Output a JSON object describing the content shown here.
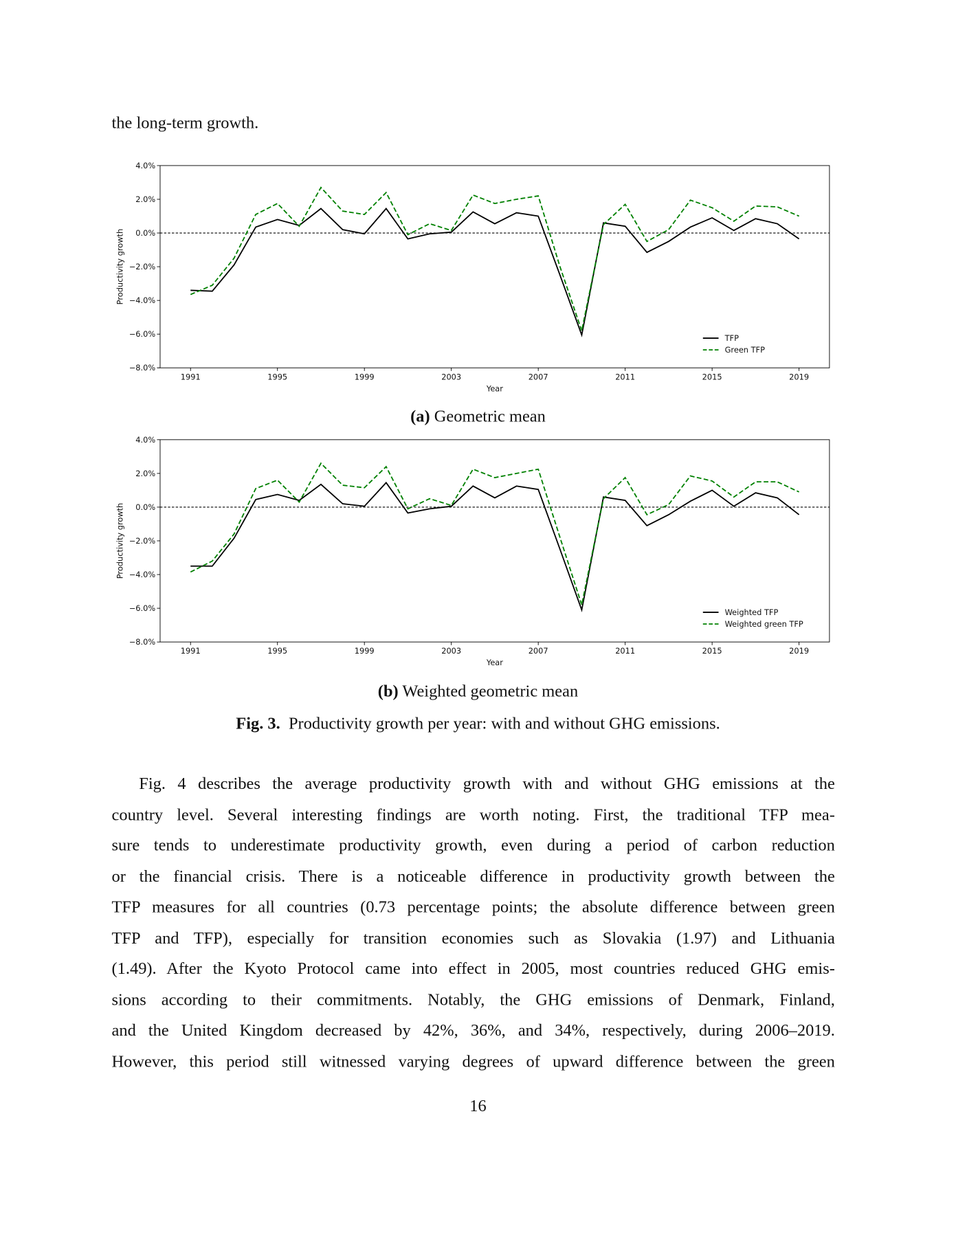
{
  "intro_text": "the long-term growth.",
  "chart_data": [
    {
      "type": "line",
      "y_label": "Productivity growth",
      "x_label": "Year",
      "x": [
        1991,
        1992,
        1993,
        1994,
        1995,
        1996,
        1997,
        1998,
        1999,
        2000,
        2001,
        2002,
        2003,
        2004,
        2005,
        2006,
        2007,
        2008,
        2009,
        2010,
        2011,
        2012,
        2013,
        2014,
        2015,
        2016,
        2017,
        2018,
        2019
      ],
      "series": [
        {
          "name": "TFP",
          "color": "#000000",
          "linestyle": "-",
          "values": [
            -3.4,
            -3.45,
            -1.9,
            0.35,
            0.8,
            0.45,
            1.45,
            0.2,
            -0.05,
            1.45,
            -0.35,
            -0.05,
            0.05,
            1.25,
            0.55,
            1.2,
            1.0,
            -2.5,
            -6.05,
            0.6,
            0.4,
            -1.15,
            -0.5,
            0.35,
            0.9,
            0.15,
            0.85,
            0.55,
            -0.35
          ]
        },
        {
          "name": "Green TFP",
          "color": "#008000",
          "linestyle": "--",
          "values": [
            -3.65,
            -3.1,
            -1.5,
            1.1,
            1.75,
            0.4,
            2.7,
            1.3,
            1.1,
            2.4,
            -0.1,
            0.55,
            0.15,
            2.25,
            1.75,
            2.0,
            2.2,
            -2.0,
            -5.8,
            0.5,
            1.7,
            -0.5,
            0.2,
            1.95,
            1.5,
            0.7,
            1.6,
            1.55,
            1.0
          ]
        }
      ],
      "xlim": [
        1989.6,
        2020.4
      ],
      "xticks": [
        1991,
        1995,
        1999,
        2003,
        2007,
        2011,
        2015,
        2019
      ],
      "ylim": [
        -8,
        4
      ],
      "yticks": [
        {
          "value": -8,
          "label": "−8.0%"
        },
        {
          "value": -6,
          "label": "−6.0%"
        },
        {
          "value": -4,
          "label": "−4.0%"
        },
        {
          "value": -2,
          "label": "−2.0%"
        },
        {
          "value": 0,
          "label": "0.0%"
        },
        {
          "value": 2,
          "label": "2.0%"
        },
        {
          "value": 4,
          "label": "4.0%"
        }
      ],
      "reference_line": 0,
      "legend": "lower right"
    },
    {
      "type": "line",
      "y_label": "Productivity growth",
      "x_label": "Year",
      "x": [
        1991,
        1992,
        1993,
        1994,
        1995,
        1996,
        1997,
        1998,
        1999,
        2000,
        2001,
        2002,
        2003,
        2004,
        2005,
        2006,
        2007,
        2008,
        2009,
        2010,
        2011,
        2012,
        2013,
        2014,
        2015,
        2016,
        2017,
        2018,
        2019
      ],
      "series": [
        {
          "name": "Weighted TFP",
          "color": "#000000",
          "linestyle": "-",
          "values": [
            -3.5,
            -3.5,
            -1.85,
            0.45,
            0.75,
            0.4,
            1.35,
            0.2,
            0.05,
            1.45,
            -0.35,
            -0.1,
            0.05,
            1.25,
            0.55,
            1.25,
            1.05,
            -2.5,
            -6.1,
            0.6,
            0.4,
            -1.1,
            -0.45,
            0.35,
            1.0,
            0.05,
            0.85,
            0.55,
            -0.45
          ]
        },
        {
          "name": "Weighted green TFP",
          "color": "#008000",
          "linestyle": "--",
          "values": [
            -3.85,
            -3.2,
            -1.6,
            1.1,
            1.6,
            0.3,
            2.6,
            1.3,
            1.15,
            2.4,
            -0.1,
            0.5,
            0.1,
            2.25,
            1.75,
            2.0,
            2.25,
            -1.8,
            -5.8,
            0.5,
            1.75,
            -0.45,
            0.15,
            1.85,
            1.55,
            0.6,
            1.5,
            1.5,
            0.9
          ]
        }
      ],
      "xlim": [
        1989.6,
        2020.4
      ],
      "xticks": [
        1991,
        1995,
        1999,
        2003,
        2007,
        2011,
        2015,
        2019
      ],
      "ylim": [
        -8,
        4
      ],
      "yticks": [
        {
          "value": -8,
          "label": "−8.0%"
        },
        {
          "value": -6,
          "label": "−6.0%"
        },
        {
          "value": -4,
          "label": "−4.0%"
        },
        {
          "value": -2,
          "label": "−2.0%"
        },
        {
          "value": 0,
          "label": "0.0%"
        },
        {
          "value": 2,
          "label": "2.0%"
        },
        {
          "value": 4,
          "label": "4.0%"
        }
      ],
      "reference_line": 0,
      "legend": "lower right"
    }
  ],
  "subcaptions": [
    {
      "label": "(a)",
      "text": "Geometric mean"
    },
    {
      "label": "(b)",
      "text": "Weighted geometric mean"
    }
  ],
  "figure_caption": {
    "label": "Fig. 3.",
    "text": "Productivity growth per year: with and without GHG emissions."
  },
  "paragraph_lines": [
    "Fig. 4 describes the average productivity growth with and without GHG emissions at the",
    "country level. Several interesting findings are worth noting. First, the traditional TFP mea-",
    "sure tends to underestimate productivity growth, even during a period of carbon reduction",
    "or the financial crisis. There is a noticeable difference in productivity growth between the",
    "TFP measures for all countries (0.73 percentage points; the absolute difference between green",
    "TFP and TFP), especially for transition economies such as Slovakia (1.97) and Lithuania",
    "(1.49). After the Kyoto Protocol came into effect in 2005, most countries reduced GHG emis-",
    "sions according to their commitments. Notably, the GHG emissions of Denmark, Finland,",
    "and the United Kingdom decreased by 42%, 36%, and 34%, respectively, during 2006–2019.",
    "However, this period still witnessed varying degrees of upward difference between the green"
  ],
  "page_number": "16"
}
